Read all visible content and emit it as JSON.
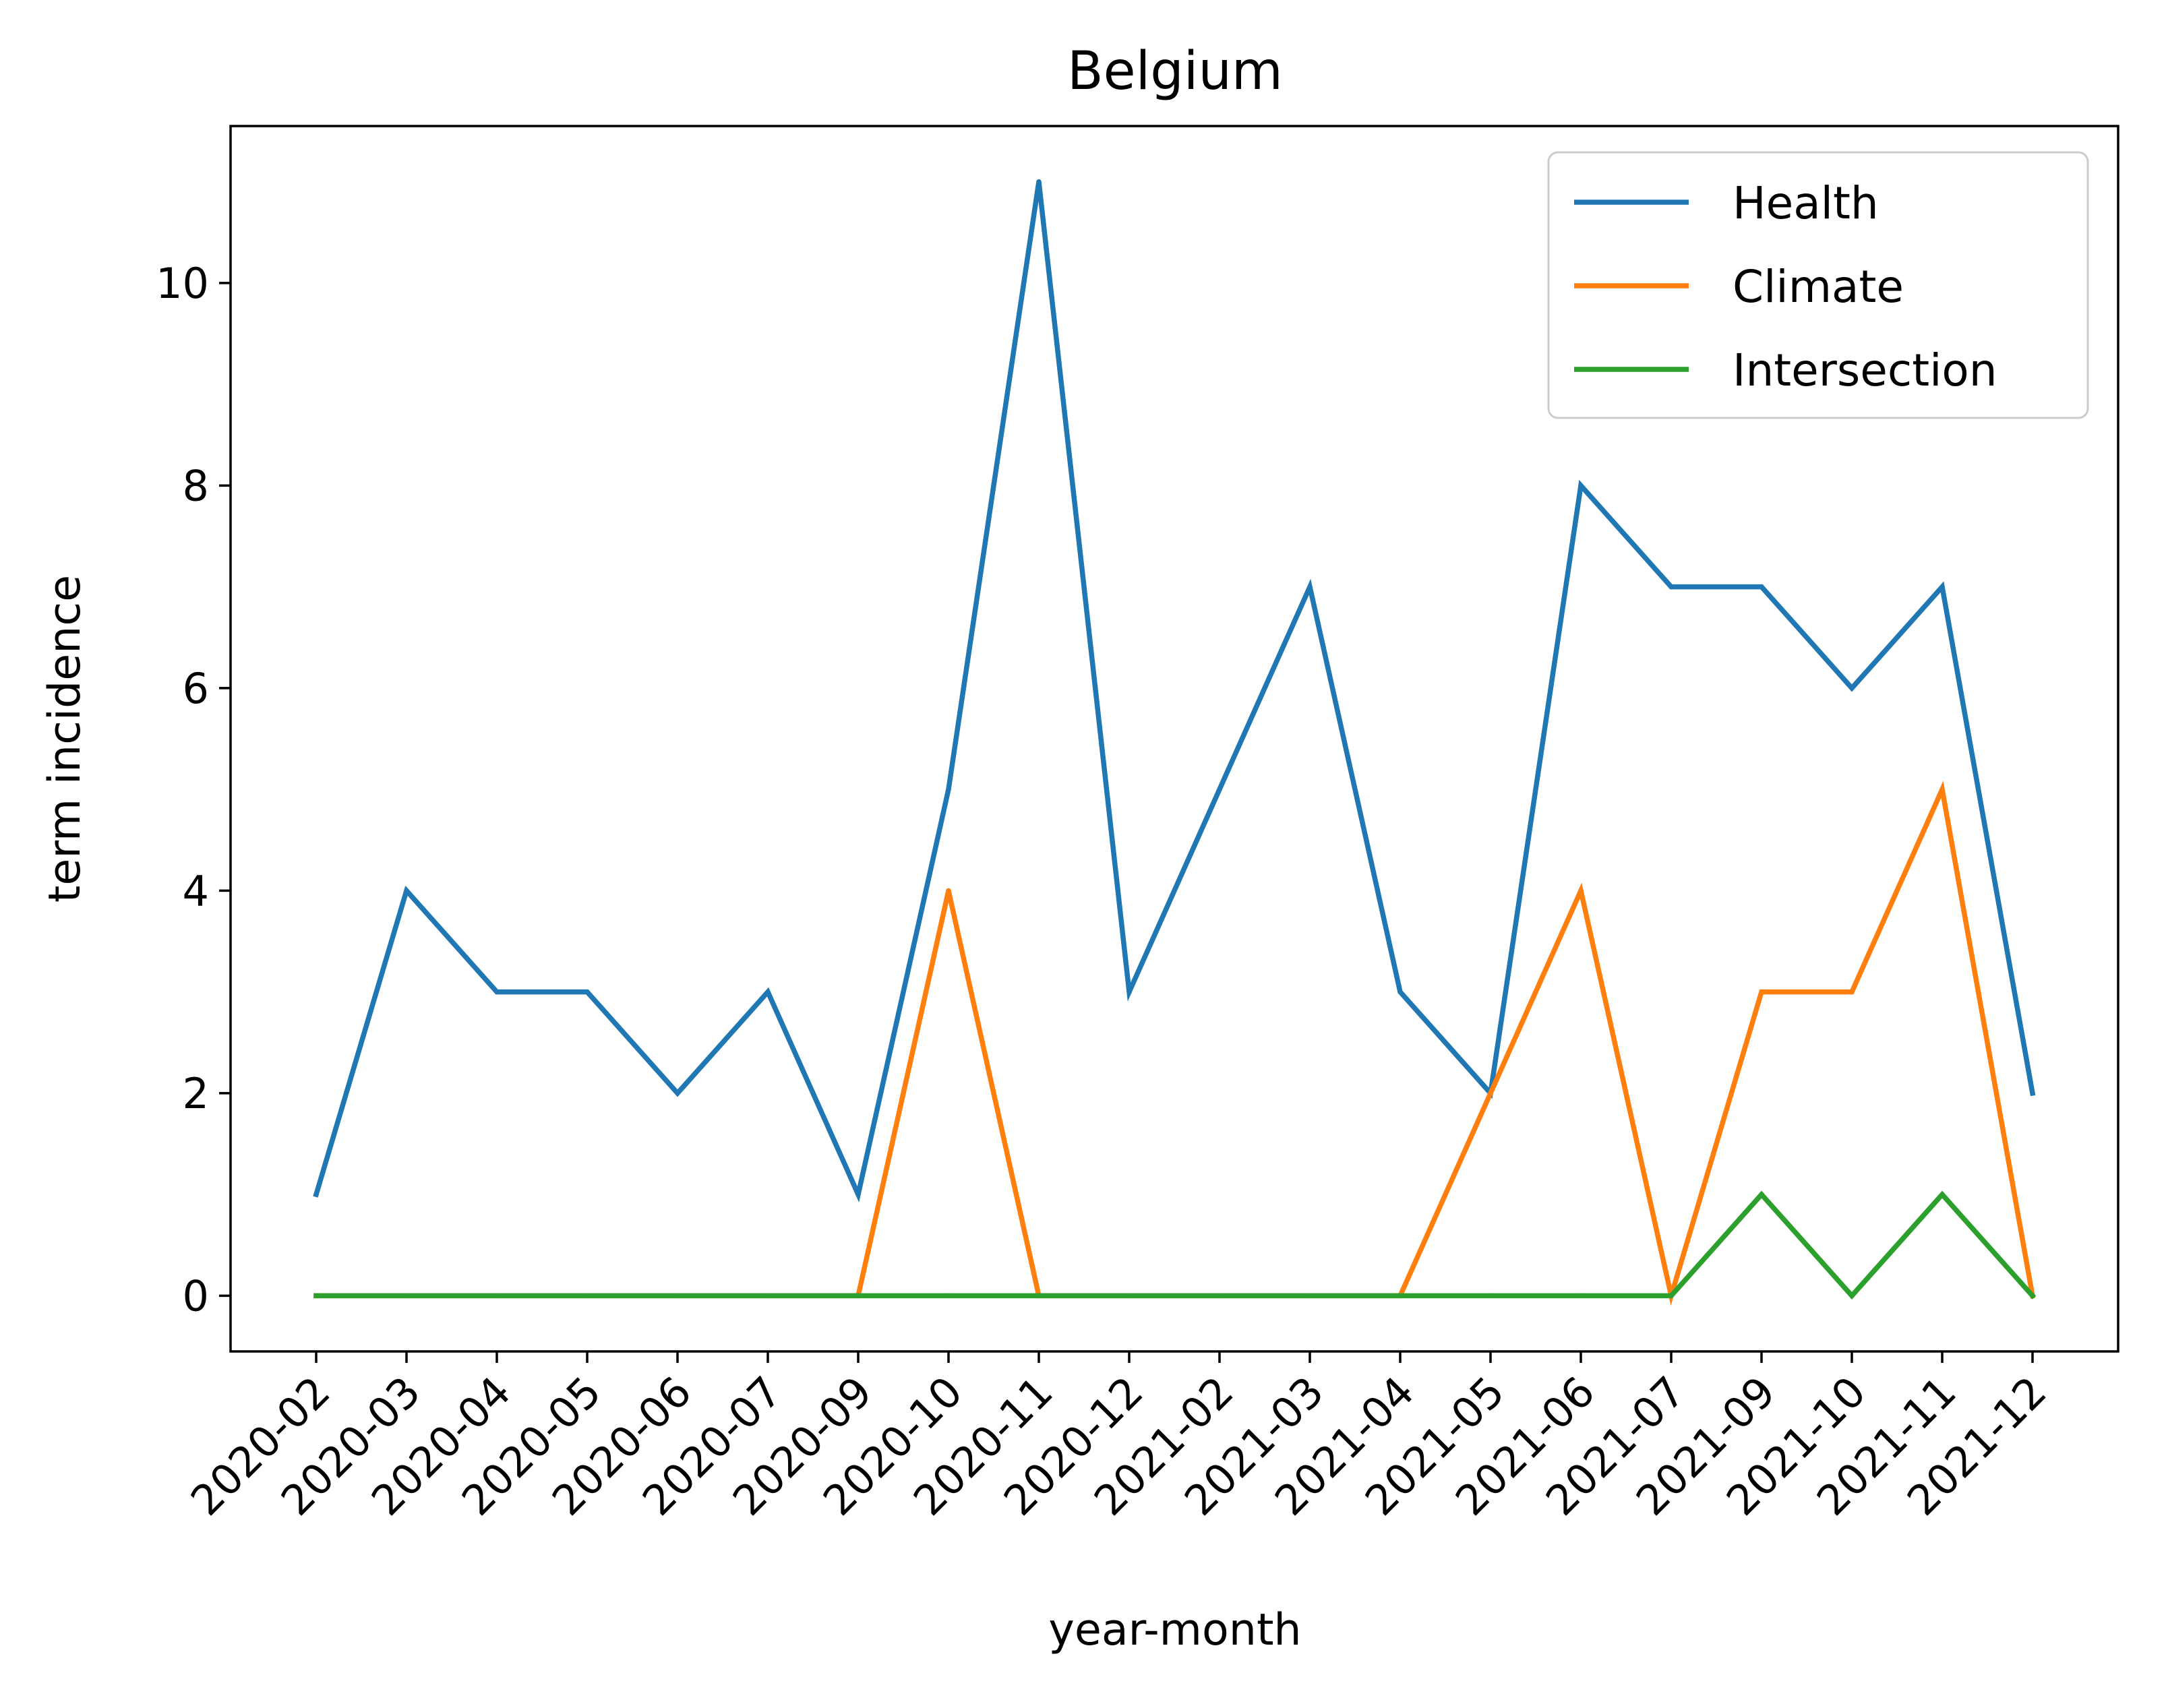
{
  "chart_data": {
    "type": "line",
    "title": "Belgium",
    "xlabel": "year-month",
    "ylabel": "term incidence",
    "categories": [
      "2020-02",
      "2020-03",
      "2020-04",
      "2020-05",
      "2020-06",
      "2020-07",
      "2020-09",
      "2020-10",
      "2020-11",
      "2020-12",
      "2021-02",
      "2021-03",
      "2021-04",
      "2021-05",
      "2021-06",
      "2021-07",
      "2021-09",
      "2021-10",
      "2021-11",
      "2021-12"
    ],
    "ylim": [
      -0.55,
      11.55
    ],
    "yticks": [
      0,
      2,
      4,
      6,
      8,
      10
    ],
    "grid": false,
    "legend_position": "top-right",
    "series": [
      {
        "name": "Health",
        "color": "#1f77b4",
        "values": [
          1,
          4,
          3,
          3,
          2,
          3,
          1,
          5,
          11,
          3,
          5,
          7,
          3,
          2,
          8,
          7,
          7,
          6,
          7,
          2
        ]
      },
      {
        "name": "Climate",
        "color": "#ff7f0e",
        "values": [
          0,
          0,
          0,
          0,
          0,
          0,
          0,
          4,
          0,
          0,
          0,
          0,
          0,
          2,
          4,
          0,
          3,
          3,
          5,
          0
        ]
      },
      {
        "name": "Intersection",
        "color": "#2ca02c",
        "values": [
          0,
          0,
          0,
          0,
          0,
          0,
          0,
          0,
          0,
          0,
          0,
          0,
          0,
          0,
          0,
          0,
          1,
          0,
          1,
          0
        ]
      }
    ]
  }
}
